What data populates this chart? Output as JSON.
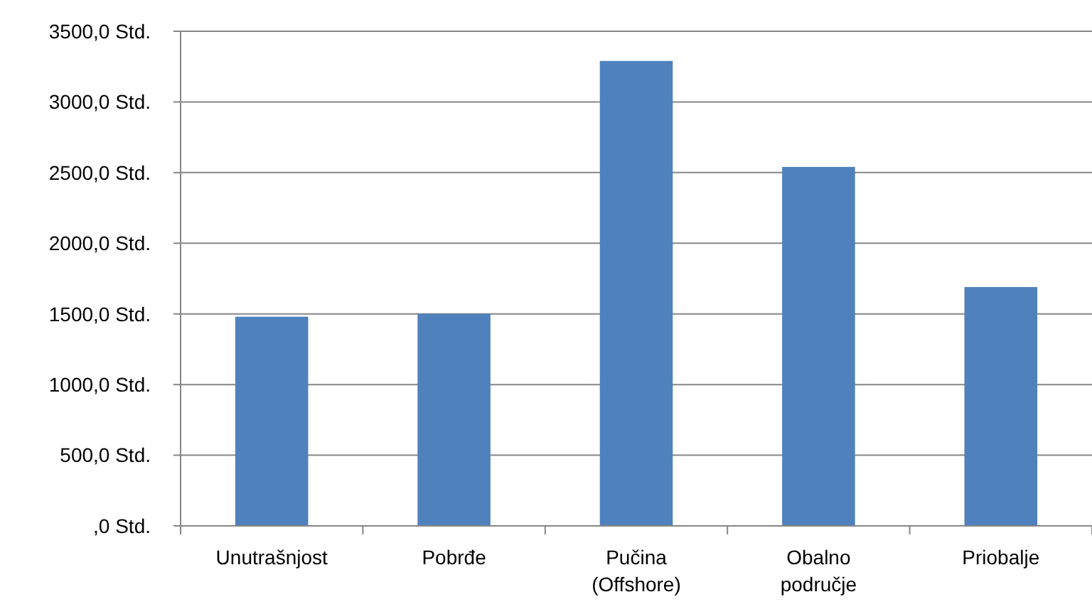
{
  "chart_data": {
    "type": "bar",
    "categories": [
      "Unutrašnjost",
      "Pobrđe",
      "Pučina (Offshore)",
      "Obalno područje",
      "Priobalje"
    ],
    "values": [
      1480,
      1500,
      3290,
      2540,
      1690
    ],
    "color": "#4f81bd",
    "ylim": [
      0,
      3500
    ],
    "yticks": [
      {
        "value": 0,
        "label": ",0 Std."
      },
      {
        "value": 500,
        "label": "500,0 Std."
      },
      {
        "value": 1000,
        "label": "1000,0 Std."
      },
      {
        "value": 1500,
        "label": "1500,0 Std."
      },
      {
        "value": 2000,
        "label": "2000,0 Std."
      },
      {
        "value": 2500,
        "label": "2500,0 Std."
      },
      {
        "value": 3000,
        "label": "3000,0 Std."
      },
      {
        "value": 3500,
        "label": "3500,0 Std."
      }
    ],
    "grid": "y"
  }
}
